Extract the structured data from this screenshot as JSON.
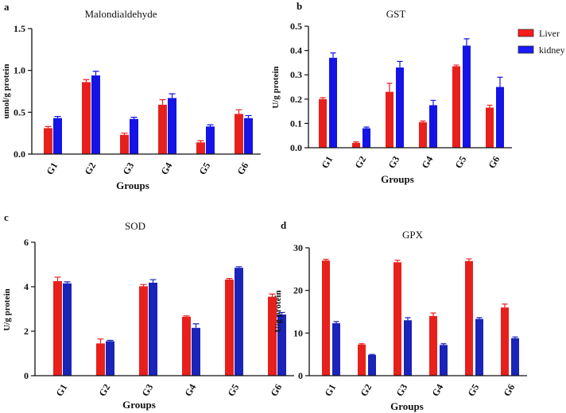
{
  "legend": {
    "items": [
      {
        "label": "Liver",
        "color": "#ff1a1a"
      },
      {
        "label": "kidney",
        "color": "#1a1aff"
      }
    ]
  },
  "colors": {
    "liver": "#e8201c",
    "kidney": "#1414e6",
    "kidney_dark": "#1a24b8",
    "axis": "#111111"
  },
  "chart_data": [
    {
      "id": "a",
      "panel_label": "a",
      "type": "bar",
      "title": "Malondialdehyde",
      "xlabel": "Groups",
      "ylabel": "umol/g protein",
      "categories": [
        "G1",
        "G2",
        "G3",
        "G4",
        "G5",
        "G6"
      ],
      "ylim": [
        0,
        1.5
      ],
      "yticks": [
        "0.0",
        "0.5",
        "1.0",
        "1.5"
      ],
      "ytick_values": [
        0,
        0.5,
        1.0,
        1.5
      ],
      "series": [
        {
          "name": "Liver",
          "values": [
            0.31,
            0.86,
            0.23,
            0.59,
            0.14,
            0.48
          ],
          "errors": [
            0.02,
            0.03,
            0.02,
            0.06,
            0.02,
            0.05
          ]
        },
        {
          "name": "kidney",
          "values": [
            0.43,
            0.94,
            0.42,
            0.67,
            0.33,
            0.43
          ],
          "errors": [
            0.02,
            0.05,
            0.02,
            0.05,
            0.02,
            0.03
          ]
        }
      ]
    },
    {
      "id": "b",
      "panel_label": "b",
      "type": "bar",
      "title": "GST",
      "xlabel": "Groups",
      "ylabel": "U/g protein",
      "categories": [
        "G1",
        "G2",
        "G3",
        "G4",
        "G5",
        "G6"
      ],
      "ylim": [
        0,
        0.5
      ],
      "yticks": [
        "0.0",
        "0.1",
        "0.2",
        "0.3",
        "0.4",
        "0.5"
      ],
      "ytick_values": [
        0,
        0.1,
        0.2,
        0.3,
        0.4,
        0.5
      ],
      "series": [
        {
          "name": "Liver",
          "values": [
            0.2,
            0.02,
            0.23,
            0.105,
            0.335,
            0.165
          ],
          "errors": [
            0.006,
            0.004,
            0.035,
            0.005,
            0.005,
            0.01
          ]
        },
        {
          "name": "kidney",
          "values": [
            0.37,
            0.08,
            0.33,
            0.175,
            0.42,
            0.25
          ],
          "errors": [
            0.02,
            0.005,
            0.025,
            0.02,
            0.028,
            0.04
          ]
        }
      ]
    },
    {
      "id": "c",
      "panel_label": "c",
      "type": "bar",
      "title": "SOD",
      "xlabel": "Groups",
      "ylabel": "U/g protein",
      "categories": [
        "G1",
        "G2",
        "G3",
        "G4",
        "G5",
        "G6"
      ],
      "ylim": [
        0,
        6
      ],
      "yticks": [
        "0",
        "2",
        "4",
        "6"
      ],
      "ytick_values": [
        0,
        2,
        4,
        6
      ],
      "series": [
        {
          "name": "Liver",
          "values": [
            4.25,
            1.45,
            4.02,
            2.65,
            4.32,
            3.55
          ],
          "errors": [
            0.18,
            0.2,
            0.08,
            0.04,
            0.05,
            0.12
          ]
        },
        {
          "name": "kidney",
          "values": [
            4.15,
            1.55,
            4.18,
            2.15,
            4.85,
            2.75
          ],
          "errors": [
            0.07,
            0.04,
            0.14,
            0.18,
            0.05,
            0.09
          ]
        }
      ]
    },
    {
      "id": "d",
      "panel_label": "d",
      "type": "bar",
      "title": "GPX",
      "xlabel": "Groups",
      "ylabel": "U/g protein",
      "categories": [
        "G1",
        "G2",
        "G3",
        "G4",
        "G5",
        "G6"
      ],
      "ylim": [
        0,
        30
      ],
      "yticks": [
        "0",
        "10",
        "20",
        "30"
      ],
      "ytick_values": [
        0,
        10,
        20,
        30
      ],
      "series": [
        {
          "name": "Liver",
          "values": [
            27.0,
            7.3,
            26.6,
            14.0,
            26.9,
            16.0
          ],
          "errors": [
            0.3,
            0.2,
            0.5,
            0.7,
            0.5,
            0.8
          ]
        },
        {
          "name": "kidney",
          "values": [
            12.3,
            4.9,
            13.0,
            7.2,
            13.3,
            8.8
          ],
          "errors": [
            0.4,
            0.1,
            0.6,
            0.3,
            0.3,
            0.3
          ]
        }
      ]
    }
  ]
}
